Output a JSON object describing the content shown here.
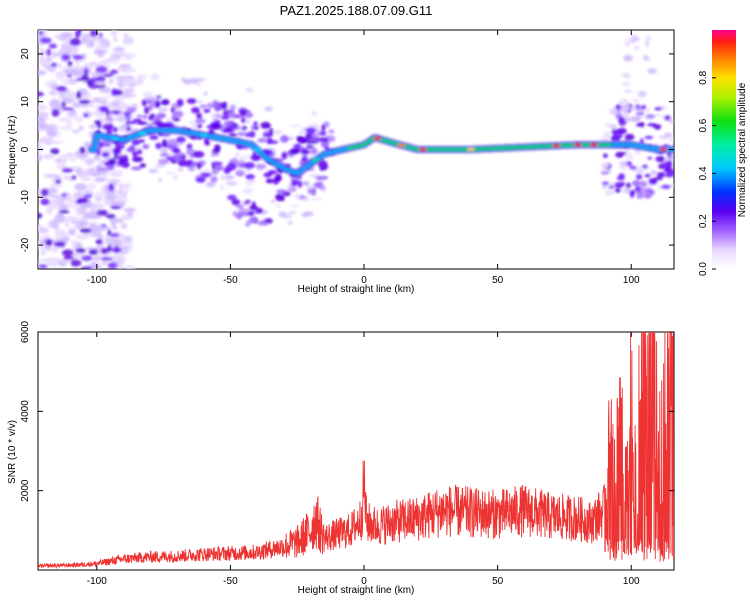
{
  "title": "PAZ1.2025.188.07.09.G11",
  "chart_data": [
    {
      "type": "heatmap",
      "xlabel": "Height of straight line (km)",
      "ylabel": "Frequency (Hz)",
      "xlim": [
        -122,
        116
      ],
      "ylim": [
        -25,
        25
      ],
      "xticks": [
        -100,
        -50,
        0,
        50,
        100
      ],
      "yticks": [
        -20,
        -10,
        0,
        10,
        20
      ],
      "colorbar": {
        "label": "Normalized spectral amplitude",
        "range": [
          0,
          1
        ],
        "ticks": [
          0.0,
          0.2,
          0.4,
          0.6,
          0.8
        ],
        "tick_labels": [
          "0.0",
          "0.2",
          "0.4",
          "0.6",
          "0.8"
        ]
      },
      "ridge": [
        {
          "x": -100,
          "y": 3
        },
        {
          "x": -90,
          "y": 2
        },
        {
          "x": -80,
          "y": 4
        },
        {
          "x": -70,
          "y": 4
        },
        {
          "x": -60,
          "y": 3
        },
        {
          "x": -50,
          "y": 2
        },
        {
          "x": -42,
          "y": 1
        },
        {
          "x": -36,
          "y": -2
        },
        {
          "x": -30,
          "y": -4
        },
        {
          "x": -25,
          "y": -5
        },
        {
          "x": -20,
          "y": -3
        },
        {
          "x": -15,
          "y": -1
        },
        {
          "x": -8,
          "y": 0
        },
        {
          "x": 0,
          "y": 1
        },
        {
          "x": 4,
          "y": 2.5
        },
        {
          "x": 10,
          "y": 1.5
        },
        {
          "x": 20,
          "y": 0
        },
        {
          "x": 40,
          "y": 0
        },
        {
          "x": 60,
          "y": 0.5
        },
        {
          "x": 80,
          "y": 1
        },
        {
          "x": 90,
          "y": 1
        },
        {
          "x": 100,
          "y": 1
        },
        {
          "x": 110,
          "y": 0
        },
        {
          "x": 116,
          "y": 0
        }
      ],
      "side_branches": [
        {
          "x": -80,
          "y": 6
        },
        {
          "x": -60,
          "y": -5
        },
        {
          "x": -50,
          "y": 7
        },
        {
          "x": -45,
          "y": -12
        },
        {
          "x": -40,
          "y": -14
        },
        {
          "x": 100,
          "y": 7
        },
        {
          "x": 105,
          "y": -8
        }
      ]
    },
    {
      "type": "line",
      "xlabel": "Height of straight line (km)",
      "ylabel": "SNR (10 * v/v)",
      "xlim": [
        -122,
        116
      ],
      "ylim": [
        0,
        6000
      ],
      "xticks": [
        -100,
        -50,
        0,
        50,
        100
      ],
      "yticks": [
        2000,
        4000,
        6000
      ],
      "color": "#ee3333",
      "series": [
        {
          "x": [
            -122,
            -110,
            -100,
            -90,
            -80,
            -70,
            -60,
            -50,
            -40,
            -30,
            -25,
            -20,
            -18,
            -15,
            -10,
            -5,
            -1,
            0,
            1,
            5,
            10,
            20,
            30,
            40,
            50,
            60,
            70,
            80,
            85,
            90,
            92,
            94,
            96,
            98,
            100,
            102,
            104,
            106,
            108,
            110,
            112,
            114,
            116
          ],
          "y": [
            100,
            120,
            160,
            280,
            330,
            350,
            400,
            420,
            450,
            600,
            700,
            1000,
            1300,
            800,
            900,
            1000,
            1300,
            2200,
            1200,
            1100,
            1200,
            1300,
            1500,
            1450,
            1400,
            1500,
            1350,
            1300,
            1200,
            1500,
            2500,
            2200,
            3500,
            1500,
            4000,
            1500,
            5000,
            3500,
            6000,
            2000,
            3800,
            3700,
            3900
          ]
        }
      ]
    }
  ]
}
